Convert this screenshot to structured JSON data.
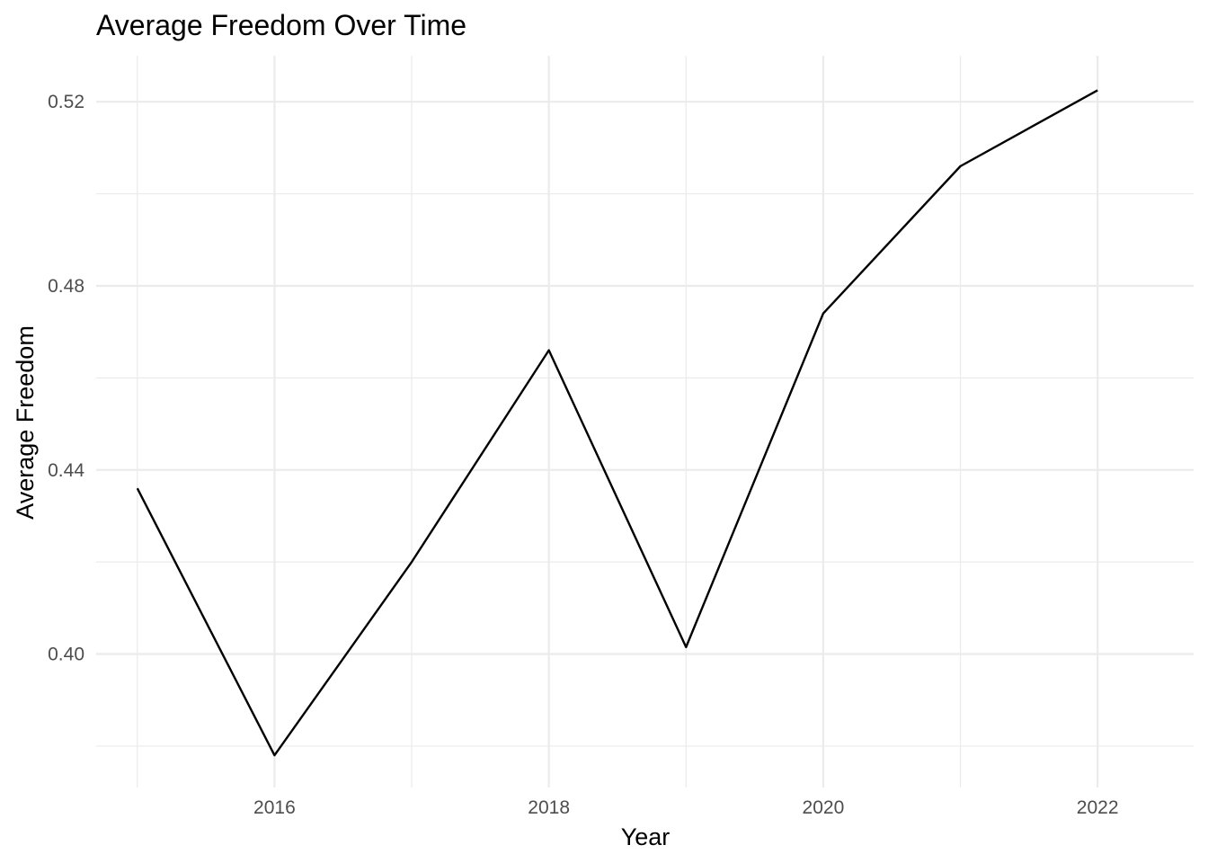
{
  "chart_data": {
    "type": "line",
    "title": "Average Freedom Over Time",
    "xlabel": "Year",
    "ylabel": "Average Freedom",
    "x": [
      2015,
      2016,
      2017,
      2018,
      2019,
      2020,
      2021,
      2022
    ],
    "series": [
      {
        "values": [
          0.436,
          0.378,
          0.42,
          0.466,
          0.4015,
          0.474,
          0.506,
          0.5225
        ]
      }
    ],
    "xlim": [
      2014.7,
      2022.7
    ],
    "ylim": [
      0.371,
      0.53
    ],
    "x_major_ticks": [
      2016,
      2018,
      2020,
      2022
    ],
    "x_minor_ticks": [
      2015,
      2017,
      2019,
      2021
    ],
    "x_tick_labels": [
      "2016",
      "2018",
      "2020",
      "2022"
    ],
    "y_major_ticks": [
      0.4,
      0.44,
      0.48,
      0.52
    ],
    "y_minor_ticks": [
      0.38,
      0.42,
      0.46,
      0.5
    ],
    "y_tick_labels": [
      "0.40",
      "0.44",
      "0.48",
      "0.52"
    ],
    "grid": true,
    "legend": "none",
    "line_color": "#000000",
    "grid_color": "#ebebeb"
  }
}
